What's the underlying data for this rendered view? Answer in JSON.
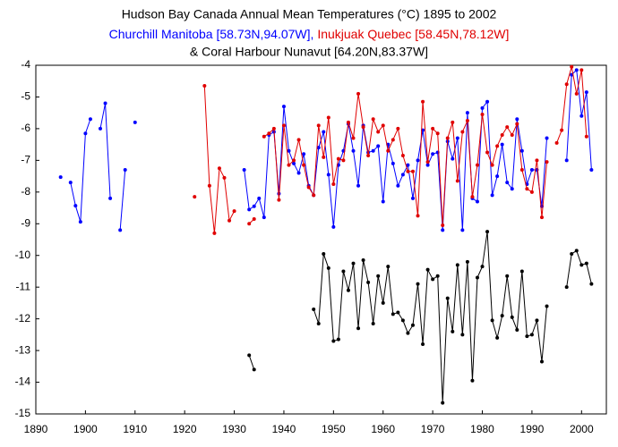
{
  "chart_data": {
    "type": "line",
    "title": "Hudson Bay Canada Annual Mean Temperatures (°C) 1895 to 2002",
    "x": [
      1895,
      1896,
      1897,
      1898,
      1899,
      1900,
      1901,
      1902,
      1903,
      1904,
      1905,
      1906,
      1907,
      1908,
      1909,
      1910,
      1911,
      1912,
      1913,
      1914,
      1915,
      1916,
      1917,
      1918,
      1919,
      1920,
      1921,
      1922,
      1923,
      1924,
      1925,
      1926,
      1927,
      1928,
      1929,
      1930,
      1931,
      1932,
      1933,
      1934,
      1935,
      1936,
      1937,
      1938,
      1939,
      1940,
      1941,
      1942,
      1943,
      1944,
      1945,
      1946,
      1947,
      1948,
      1949,
      1950,
      1951,
      1952,
      1953,
      1954,
      1955,
      1956,
      1957,
      1958,
      1959,
      1960,
      1961,
      1962,
      1963,
      1964,
      1965,
      1966,
      1967,
      1968,
      1969,
      1970,
      1971,
      1972,
      1973,
      1974,
      1975,
      1976,
      1977,
      1978,
      1979,
      1980,
      1981,
      1982,
      1983,
      1984,
      1985,
      1986,
      1987,
      1988,
      1989,
      1990,
      1991,
      1992,
      1993,
      1994,
      1995,
      1996,
      1997,
      1998,
      1999,
      2000,
      2001,
      2002
    ],
    "series": [
      {
        "name": "Churchill Manitoba [58.73N,94.07W],",
        "color": "#0000ff",
        "values": [
          -7.53,
          null,
          -7.7,
          -8.43,
          -8.94,
          -6.15,
          -5.7,
          null,
          -6.0,
          -5.2,
          -8.2,
          null,
          -9.2,
          -7.3,
          null,
          -5.8,
          null,
          null,
          null,
          null,
          null,
          null,
          null,
          null,
          null,
          null,
          null,
          null,
          null,
          null,
          null,
          null,
          null,
          null,
          null,
          null,
          null,
          -7.3,
          -8.55,
          -8.45,
          -8.2,
          -8.8,
          -6.2,
          -6.1,
          -8.05,
          -5.3,
          -6.7,
          -7.1,
          -7.4,
          -6.8,
          -7.8,
          -8.1,
          -6.6,
          -6.1,
          -7.45,
          -9.1,
          -7.15,
          -6.7,
          -5.85,
          -6.7,
          -7.8,
          -5.9,
          -6.75,
          -6.7,
          -6.55,
          -8.3,
          -6.5,
          -7.1,
          -7.8,
          -7.45,
          -7.15,
          -8.2,
          -7.0,
          -6.05,
          -7.15,
          -6.8,
          -6.75,
          -9.2,
          -6.4,
          -6.95,
          -6.3,
          -9.2,
          -5.5,
          -8.2,
          -8.3,
          -5.35,
          -5.15,
          -8.1,
          -7.5,
          -6.5,
          -7.7,
          -7.9,
          -5.7,
          -6.7,
          -7.75,
          -7.3,
          -7.3,
          -8.45,
          -6.3,
          null,
          null,
          null,
          -7.0,
          -4.3,
          -4.15,
          -5.6,
          -4.85,
          -7.3
        ]
      },
      {
        "name": "Inukjuak Quebec [58.45N,78.12W]",
        "color": "#e00000",
        "values": [
          null,
          null,
          null,
          null,
          null,
          null,
          null,
          null,
          null,
          null,
          null,
          null,
          null,
          null,
          null,
          null,
          null,
          null,
          null,
          null,
          null,
          null,
          null,
          null,
          null,
          null,
          null,
          -8.15,
          null,
          -4.65,
          -7.8,
          -9.3,
          -7.25,
          -7.55,
          -8.9,
          -8.6,
          null,
          null,
          -9.0,
          -8.85,
          null,
          -6.25,
          -6.15,
          -6.0,
          -8.25,
          -5.9,
          -7.15,
          -7.0,
          -6.35,
          -7.15,
          -7.85,
          -8.1,
          -5.9,
          -6.9,
          -5.65,
          -7.75,
          -6.95,
          -7.0,
          -5.8,
          -6.3,
          -4.9,
          -5.95,
          -6.85,
          -5.7,
          -6.1,
          -5.9,
          -6.7,
          -6.35,
          -6.0,
          -6.85,
          -7.35,
          -7.35,
          -8.75,
          -5.15,
          -7.05,
          -6.0,
          -6.15,
          -9.05,
          -6.3,
          -5.8,
          -7.65,
          -6.1,
          -5.75,
          -8.15,
          -7.15,
          -5.55,
          -6.75,
          -7.15,
          -6.55,
          -6.2,
          -5.95,
          -6.2,
          -5.85,
          -7.3,
          -7.9,
          -8.0,
          -7.0,
          -8.8,
          -7.05,
          null,
          -6.45,
          -6.05,
          -4.6,
          -4.05,
          -4.9,
          -4.15,
          -6.25,
          null
        ]
      },
      {
        "name": "& Coral Harbour Nunavut [64.20N,83.37W]",
        "color": "#000000",
        "values": [
          null,
          null,
          null,
          null,
          null,
          null,
          null,
          null,
          null,
          null,
          null,
          null,
          null,
          null,
          null,
          null,
          null,
          null,
          null,
          null,
          null,
          null,
          null,
          null,
          null,
          null,
          null,
          null,
          null,
          null,
          null,
          null,
          null,
          null,
          null,
          null,
          null,
          null,
          -13.15,
          -13.6,
          null,
          null,
          null,
          null,
          null,
          null,
          null,
          null,
          null,
          null,
          null,
          -11.7,
          -12.15,
          -9.95,
          -10.4,
          -12.7,
          -12.65,
          -10.5,
          -11.1,
          -10.25,
          -12.3,
          -10.15,
          -10.85,
          -12.15,
          -10.65,
          -11.5,
          -10.35,
          -11.85,
          -11.8,
          -12.05,
          -12.45,
          -12.2,
          -10.9,
          -12.8,
          -10.45,
          -10.75,
          -10.65,
          -14.65,
          -11.35,
          -12.4,
          -10.3,
          -12.5,
          -10.2,
          -13.95,
          -10.7,
          -10.35,
          -9.25,
          -12.05,
          -12.6,
          -11.9,
          -10.65,
          -11.95,
          -12.35,
          -10.5,
          -12.55,
          -12.5,
          -12.05,
          -13.35,
          -11.6,
          null,
          null,
          null,
          -11.0,
          -9.95,
          -9.85,
          -10.3,
          -10.25,
          -10.9
        ]
      }
    ],
    "xlim": [
      1890,
      2005
    ],
    "xticks": [
      1890,
      1900,
      1910,
      1920,
      1930,
      1940,
      1950,
      1960,
      1970,
      1980,
      1990,
      2000
    ],
    "ylim": [
      -15,
      -4
    ],
    "yticks": [
      -4,
      -5,
      -6,
      -7,
      -8,
      -9,
      -10,
      -11,
      -12,
      -13,
      -14,
      -15
    ]
  }
}
